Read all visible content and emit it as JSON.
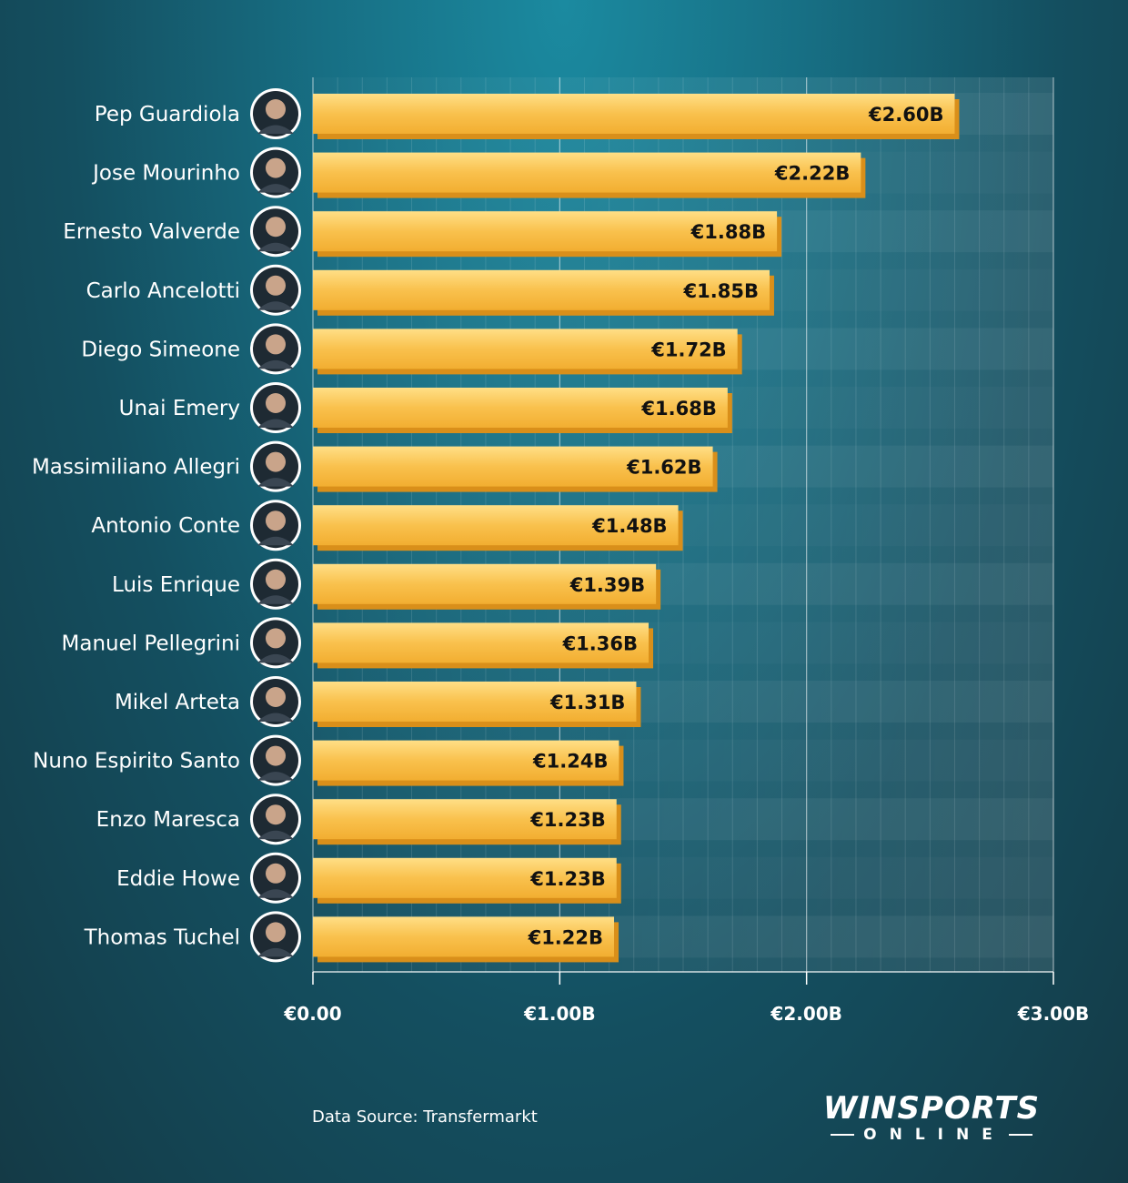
{
  "chart_data": {
    "type": "bar",
    "orientation": "horizontal",
    "categories": [
      "Pep Guardiola",
      "Jose Mourinho",
      "Ernesto Valverde",
      "Carlo Ancelotti",
      "Diego Simeone",
      "Unai Emery",
      "Massimiliano Allegri",
      "Antonio Conte",
      "Luis Enrique",
      "Manuel Pellegrini",
      "Mikel Arteta",
      "Nuno Espirito Santo",
      "Enzo Maresca",
      "Eddie Howe",
      "Thomas Tuchel"
    ],
    "values": [
      2.6,
      2.22,
      1.88,
      1.85,
      1.72,
      1.68,
      1.62,
      1.48,
      1.39,
      1.36,
      1.31,
      1.24,
      1.23,
      1.23,
      1.22
    ],
    "value_labels": [
      "€2.60B",
      "€2.22B",
      "€1.88B",
      "€1.85B",
      "€1.72B",
      "€1.68B",
      "€1.62B",
      "€1.48B",
      "€1.39B",
      "€1.36B",
      "€1.31B",
      "€1.24B",
      "€1.23B",
      "€1.23B",
      "€1.22B"
    ],
    "xlim": [
      0,
      3
    ],
    "xticks": [
      0,
      1,
      2,
      3
    ],
    "xtick_labels": [
      "€0.00",
      "€1.00B",
      "€2.00B",
      "€3.00B"
    ],
    "title": "",
    "xlabel": "",
    "ylabel": "",
    "grid": true,
    "bar_color": "#f7b733",
    "bar_highlight": "#ffd876",
    "bar_shadow": "#d98f1a"
  },
  "footer": {
    "source": "Data Source: Transfermarkt",
    "logo_main": "WINSPORTS",
    "logo_sub": "ONLINE"
  }
}
